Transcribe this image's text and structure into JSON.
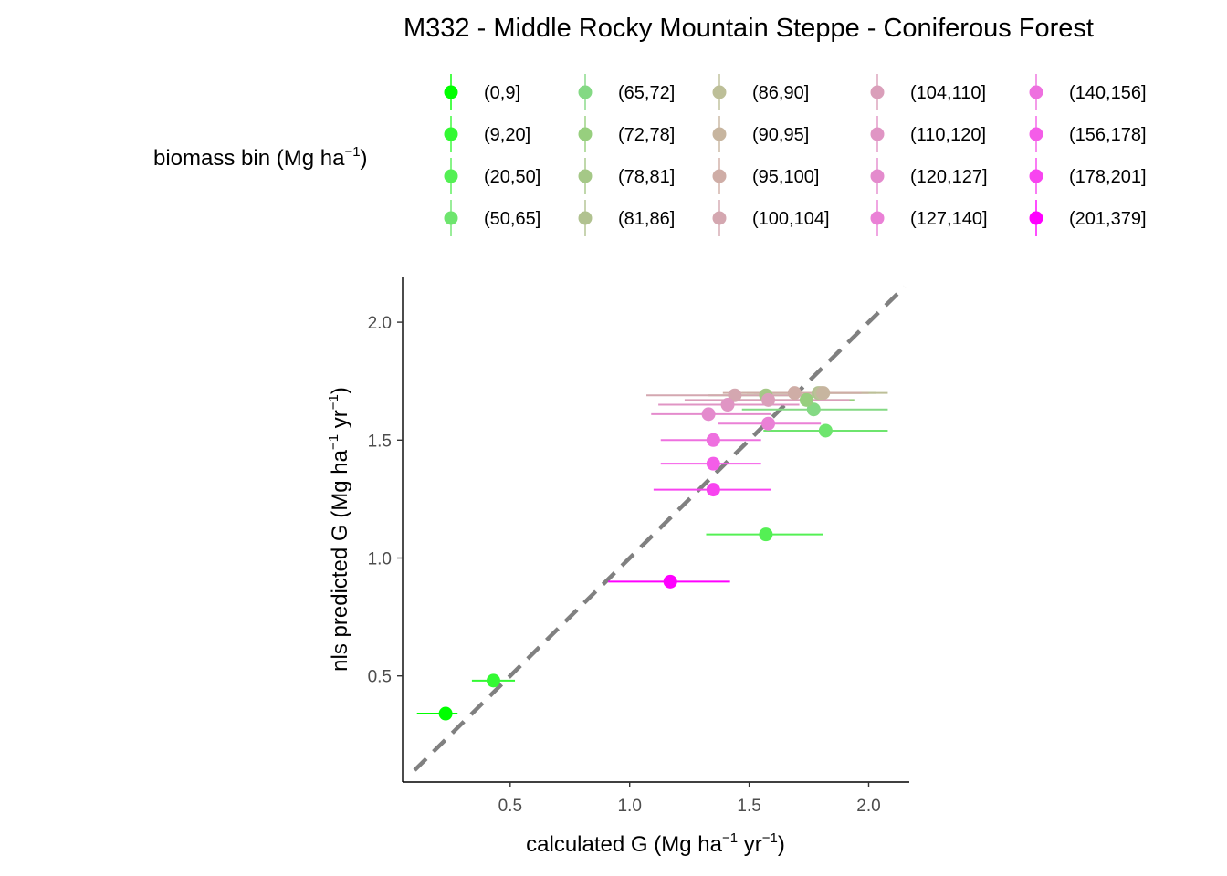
{
  "chart_data": {
    "type": "scatter",
    "title": "M332 -  Middle Rocky Mountain Steppe - Coniferous Forest",
    "xlabel": {
      "prefix": "calculated G (Mg ha",
      "sup1": "−1",
      "mid": " yr",
      "sup2": "−1",
      "suffix": ")"
    },
    "ylabel": {
      "prefix": "nls predicted G (Mg ha",
      "sup1": "−1",
      "mid": " yr",
      "sup2": "−1",
      "suffix": ")"
    },
    "xlim": [
      0.05,
      2.17
    ],
    "ylim": [
      0.05,
      2.19
    ],
    "x_ticks": [
      0.5,
      1.0,
      1.5,
      2.0
    ],
    "x_tick_labels": [
      "0.5",
      "1.0",
      "1.5",
      "2.0"
    ],
    "y_ticks": [
      0.5,
      1.0,
      1.5,
      2.0
    ],
    "y_tick_labels": [
      "0.5",
      "1.0",
      "1.5",
      "2.0"
    ],
    "reference_line": {
      "type": "identity",
      "style": "dashed",
      "color": "#808080"
    },
    "grid": false,
    "legend": {
      "title": {
        "prefix": "biomass bin (Mg ha",
        "sup": "−1",
        "suffix": ")"
      },
      "placement": "top",
      "columns": 5
    },
    "series": [
      {
        "name": "(0,9]",
        "color": "#00FF00",
        "x": 0.23,
        "y": 0.34,
        "xmin": 0.11,
        "xmax": 0.28
      },
      {
        "name": "(9,20]",
        "color": "#33F933",
        "x": 0.43,
        "y": 0.48,
        "xmin": 0.34,
        "xmax": 0.52
      },
      {
        "name": "(20,50]",
        "color": "#54F054",
        "x": 1.57,
        "y": 1.1,
        "xmin": 1.32,
        "xmax": 1.81
      },
      {
        "name": "(50,65]",
        "color": "#6EE56E",
        "x": 1.82,
        "y": 1.54,
        "xmin": 1.56,
        "xmax": 2.08
      },
      {
        "name": "(65,72]",
        "color": "#84D984",
        "x": 1.77,
        "y": 1.63,
        "xmin": 1.47,
        "xmax": 2.08
      },
      {
        "name": "(72,78]",
        "color": "#97CF7E",
        "x": 1.74,
        "y": 1.67,
        "xmin": 1.42,
        "xmax": 1.94
      },
      {
        "name": "(78,81]",
        "color": "#A5C887",
        "x": 1.57,
        "y": 1.69,
        "xmin": 1.33,
        "xmax": 1.83
      },
      {
        "name": "(81,86]",
        "color": "#B1C290",
        "x": 1.79,
        "y": 1.7,
        "xmin": 1.47,
        "xmax": 2.03
      },
      {
        "name": "(86,90]",
        "color": "#BDBF98",
        "x": 1.8,
        "y": 1.7,
        "xmin": 1.49,
        "xmax": 2.08
      },
      {
        "name": "(90,95]",
        "color": "#C7B59F",
        "x": 1.81,
        "y": 1.7,
        "xmin": 1.52,
        "xmax": 2.0
      },
      {
        "name": "(95,100]",
        "color": "#CFADA6",
        "x": 1.69,
        "y": 1.7,
        "xmin": 1.39,
        "xmax": 1.97
      },
      {
        "name": "(100,104]",
        "color": "#D4A7B0",
        "x": 1.44,
        "y": 1.69,
        "xmin": 1.07,
        "xmax": 1.78
      },
      {
        "name": "(104,110]",
        "color": "#DA9FBA",
        "x": 1.58,
        "y": 1.67,
        "xmin": 1.23,
        "xmax": 1.92
      },
      {
        "name": "(110,120]",
        "color": "#E095C4",
        "x": 1.41,
        "y": 1.65,
        "xmin": 1.12,
        "xmax": 1.71
      },
      {
        "name": "(120,127]",
        "color": "#E48BCD",
        "x": 1.33,
        "y": 1.61,
        "xmin": 1.09,
        "xmax": 1.59
      },
      {
        "name": "(127,140]",
        "color": "#EA80D6",
        "x": 1.58,
        "y": 1.57,
        "xmin": 1.37,
        "xmax": 1.8
      },
      {
        "name": "(140,156]",
        "color": "#EE70DF",
        "x": 1.35,
        "y": 1.5,
        "xmin": 1.13,
        "xmax": 1.55
      },
      {
        "name": "(156,178]",
        "color": "#F45DE8",
        "x": 1.35,
        "y": 1.4,
        "xmin": 1.13,
        "xmax": 1.55
      },
      {
        "name": "(178,201]",
        "color": "#F844F0",
        "x": 1.35,
        "y": 1.29,
        "xmin": 1.1,
        "xmax": 1.59
      },
      {
        "name": "(201,379]",
        "color": "#FF00FF",
        "x": 1.17,
        "y": 0.9,
        "xmin": 0.91,
        "xmax": 1.42
      }
    ]
  }
}
